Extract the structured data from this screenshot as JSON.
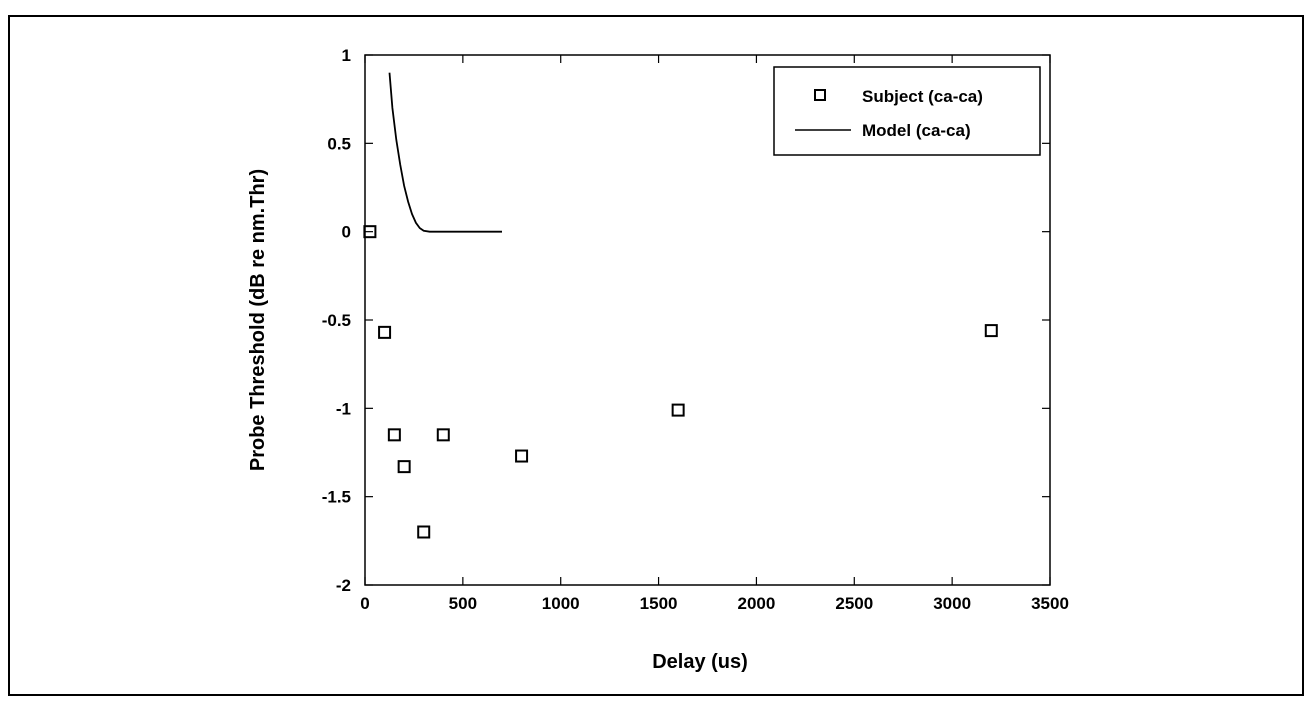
{
  "chart_data": {
    "type": "scatter",
    "xlabel": "Delay (us)",
    "ylabel": "Probe Threshold (dB re nm.Thr)",
    "xlim": [
      0,
      3500
    ],
    "ylim": [
      -2,
      1
    ],
    "xticks": [
      0,
      500,
      1000,
      1500,
      2000,
      2500,
      3000,
      3500
    ],
    "yticks": [
      1,
      0.5,
      0,
      -0.5,
      -1,
      -1.5,
      -2
    ],
    "xtick_labels": [
      "0",
      "500",
      "1000",
      "1500",
      "2000",
      "2500",
      "3000",
      "3500"
    ],
    "ytick_labels": [
      "1",
      "0.5",
      "0",
      "-0.5",
      "-1",
      "-1.5",
      "-2"
    ],
    "grid": false,
    "legend_position": "top-right",
    "series": [
      {
        "name": "Subject (ca-ca)",
        "kind": "markers",
        "marker": "square",
        "points": [
          {
            "x": 25,
            "y": 0.0
          },
          {
            "x": 100,
            "y": -0.57
          },
          {
            "x": 150,
            "y": -1.15
          },
          {
            "x": 200,
            "y": -1.33
          },
          {
            "x": 300,
            "y": -1.7
          },
          {
            "x": 400,
            "y": -1.15
          },
          {
            "x": 800,
            "y": -1.27
          },
          {
            "x": 1600,
            "y": -1.01
          },
          {
            "x": 3200,
            "y": -0.56
          }
        ]
      },
      {
        "name": "Model (ca-ca)",
        "kind": "line",
        "points": [
          {
            "x": 125,
            "y": 0.9
          },
          {
            "x": 140,
            "y": 0.7
          },
          {
            "x": 160,
            "y": 0.52
          },
          {
            "x": 180,
            "y": 0.38
          },
          {
            "x": 200,
            "y": 0.26
          },
          {
            "x": 220,
            "y": 0.17
          },
          {
            "x": 240,
            "y": 0.1
          },
          {
            "x": 260,
            "y": 0.05
          },
          {
            "x": 280,
            "y": 0.02
          },
          {
            "x": 300,
            "y": 0.005
          },
          {
            "x": 330,
            "y": 0.0
          },
          {
            "x": 400,
            "y": 0.0
          },
          {
            "x": 500,
            "y": 0.0
          },
          {
            "x": 600,
            "y": 0.0
          },
          {
            "x": 700,
            "y": 0.0
          }
        ]
      }
    ]
  }
}
